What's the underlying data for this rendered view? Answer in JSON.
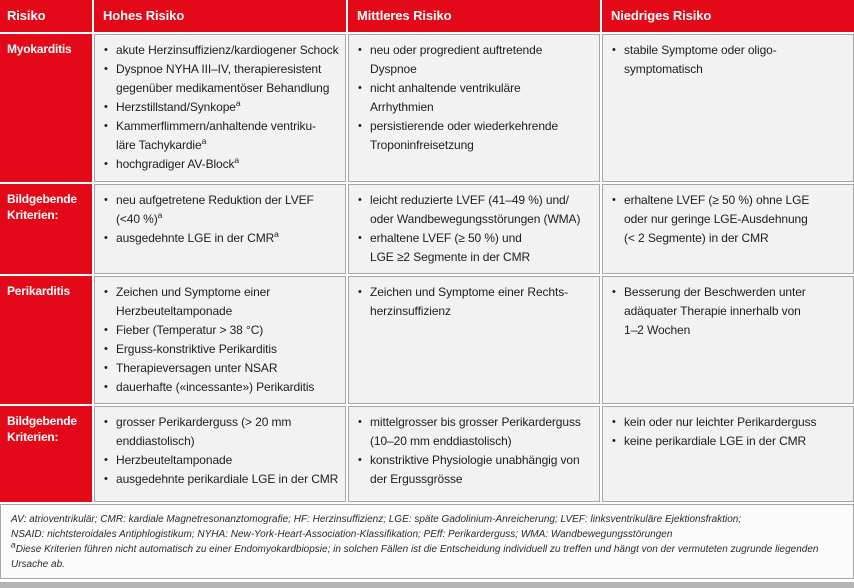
{
  "colors": {
    "brand_red": "#e30918",
    "cell_background": "#f2f2f2",
    "border_gray": "#a6a6a6",
    "footer_background": "#fbfbfb",
    "bottom_band_gray": "#b4b4b4",
    "text_dark": "#1d1d1b"
  },
  "table": {
    "headers": [
      "Risiko",
      "Hohes Risiko",
      "Mittleres Risiko",
      "Niedriges Risiko"
    ],
    "rows": [
      {
        "label": "Myokarditis",
        "cells": [
          [
            "akute Herzinsuffizienz/kardiogener Schock",
            "Dyspnoe NYHA III–IV, therapieresistent\ngegenüber medikamentöser Behandlung",
            "Herzstillstand/Synkope^a",
            "Kammerflimmern/anhaltende ventriku-\nläre Tachykardie^a",
            "hochgradiger AV-Block^a"
          ],
          [
            "neu oder progredient auftretende\nDyspnoe",
            "nicht anhaltende ventrikuläre\nArrhythmien",
            "persistierende oder wiederkehrende\nTroponinfreisetzung"
          ],
          [
            "stabile Symptome oder oligo-\nsymptomatisch"
          ]
        ]
      },
      {
        "label": "Bildgebende Kriterien:",
        "cells": [
          [
            "neu aufgetretene Reduktion der LVEF\n(<40 %)^a",
            "ausgedehnte LGE in der CMR^a"
          ],
          [
            "leicht reduzierte LVEF (41–49 %) und/\noder Wandbewegungsstörungen (WMA)",
            "erhaltene LVEF (≥ 50 %) und\nLGE ≥2 Segmente in der CMR"
          ],
          [
            "erhaltene LVEF (≥ 50 %) ohne LGE\noder nur geringe LGE-Ausdehnung\n(< 2 Segmente) in der CMR"
          ]
        ]
      },
      {
        "label": "Perikarditis",
        "cells": [
          [
            "Zeichen und Symptome einer\nHerzbeuteltamponade",
            "Fieber (Temperatur > 38 °C)",
            "Erguss-konstriktive Perikarditis",
            "Therapieversagen unter NSAR",
            "dauerhafte («incessante») Perikarditis"
          ],
          [
            "Zeichen und Symptome einer Rechts-\nherzinsuffizienz"
          ],
          [
            "Besserung der Beschwerden unter\nadäquater Therapie innerhalb von\n1–2 Wochen"
          ]
        ]
      },
      {
        "label": "Bildgebende Kriterien:",
        "cells": [
          [
            "grosser Perikarderguss (> 20 mm\nenddiastolisch)",
            "Herzbeuteltamponade",
            "ausgedehnte perikardiale LGE in der CMR"
          ],
          [
            "mittelgrosser bis grosser Perikarderguss\n(10–20 mm enddiastolisch)",
            "konstriktive Physiologie unabhängig von\nder Ergussgrösse"
          ],
          [
            "kein oder nur leichter Perikarderguss",
            "keine perikardiale LGE in der CMR"
          ]
        ]
      }
    ]
  },
  "footer": {
    "lines": [
      "AV: atrioventrikulär; CMR: kardiale Magnetresonanztomografie; HF: Herzinsuffizienz; LGE: späte Gadolinium-Anreicherung; LVEF: linksventrikuläre Ejektionsfraktion;",
      "NSAID: nichtsteroidales Antiphlogistikum; NYHA: New-York-Heart-Association-Klassifikation; PEff: Perikarderguss; WMA: Wandbewegungsstörungen"
    ],
    "note_sup": "a",
    "note_text": "Diese Kriterien führen nicht automatisch zu einer Endomyokardbiopsie; in solchen Fällen ist die Entscheidung individuell zu treffen und hängt von der vermuteten zugrunde liegenden Ursache ab."
  }
}
